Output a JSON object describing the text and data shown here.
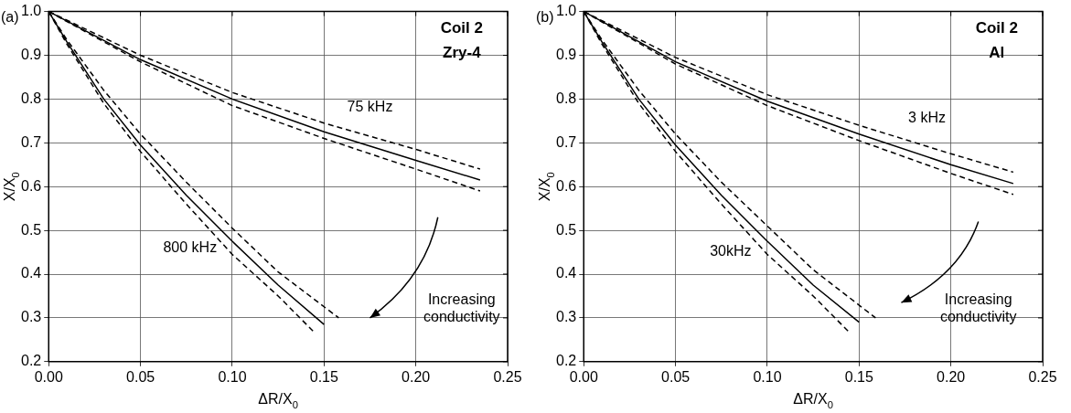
{
  "chart_data": [
    {
      "type": "line",
      "title": "(a)",
      "xlabel": "ΔR/X$_{0}$",
      "ylabel": "X/X$_{0}$",
      "xlim": [
        0,
        0.25
      ],
      "ylim": [
        0.2,
        1.0
      ],
      "xticks": [
        {
          "value": 0,
          "label": "0.00"
        },
        {
          "value": 0.05,
          "label": "0.05"
        },
        {
          "value": 0.1,
          "label": "0.10"
        },
        {
          "value": 0.15,
          "label": "0.15"
        },
        {
          "value": 0.2,
          "label": "0.20"
        },
        {
          "value": 0.25,
          "label": "0.25"
        }
      ],
      "yticks": [
        0.2,
        0.3,
        0.4,
        0.5,
        0.6,
        0.7,
        0.8,
        0.9,
        {
          "value": 1,
          "label": "1.0"
        }
      ],
      "grid": true,
      "legend": false,
      "marker": "none",
      "annotations": [
        "Coil 2",
        "Zry-4",
        "75 kHz",
        "800 kHz",
        "Increasing conductivity"
      ],
      "series": [
        {
          "color": "#000000",
          "line_style": "solid",
          "x": [
            0,
            0.05,
            0.1,
            0.15,
            0.2,
            0.235
          ],
          "values": [
            1,
            0.89,
            0.8,
            0.725,
            0.66,
            0.615
          ]
        },
        {
          "color": "#000000",
          "line_style": "dashed",
          "x": [
            0,
            0.05,
            0.1,
            0.15,
            0.2,
            0.235
          ],
          "values": [
            1,
            0.9,
            0.815,
            0.745,
            0.685,
            0.64
          ]
        },
        {
          "color": "#000000",
          "line_style": "dashed",
          "x": [
            0,
            0.05,
            0.1,
            0.15,
            0.2,
            0.235
          ],
          "values": [
            1,
            0.885,
            0.785,
            0.71,
            0.64,
            0.59
          ]
        },
        {
          "color": "#000000",
          "line_style": "solid",
          "x": [
            0,
            0.01,
            0.03,
            0.05,
            0.075,
            0.1,
            0.125,
            0.15
          ],
          "values": [
            1,
            0.93,
            0.8,
            0.695,
            0.58,
            0.475,
            0.375,
            0.285
          ]
        },
        {
          "color": "#000000",
          "line_style": "dashed",
          "x": [
            0,
            0.01,
            0.03,
            0.05,
            0.075,
            0.1,
            0.125,
            0.158
          ],
          "values": [
            1,
            0.935,
            0.82,
            0.72,
            0.61,
            0.505,
            0.405,
            0.3
          ]
        },
        {
          "color": "#000000",
          "line_style": "dashed",
          "x": [
            0,
            0.01,
            0.03,
            0.05,
            0.075,
            0.1,
            0.125,
            0.144
          ],
          "values": [
            1,
            0.925,
            0.79,
            0.68,
            0.56,
            0.445,
            0.35,
            0.27
          ]
        }
      ]
    },
    {
      "type": "line",
      "title": "(b)",
      "xlabel": "ΔR/X$_{0}$",
      "ylabel": "X/X$_{0}$",
      "xlim": [
        0,
        0.25
      ],
      "ylim": [
        0.2,
        1.0
      ],
      "xticks": [
        {
          "value": 0,
          "label": "0.00"
        },
        {
          "value": 0.05,
          "label": "0.05"
        },
        {
          "value": 0.1,
          "label": "0.10"
        },
        {
          "value": 0.15,
          "label": "0.15"
        },
        {
          "value": 0.2,
          "label": "0.20"
        },
        {
          "value": 0.25,
          "label": "0.25"
        }
      ],
      "yticks": [
        0.2,
        0.3,
        0.4,
        0.5,
        0.6,
        0.7,
        0.8,
        0.9,
        {
          "value": 1,
          "label": "1.0"
        }
      ],
      "grid": true,
      "legend": false,
      "marker": "none",
      "annotations": [
        "Coil 2",
        "Al",
        "3 kHz",
        "30kHz",
        "Increasing conductivity"
      ],
      "series": [
        {
          "color": "#000000",
          "line_style": "solid",
          "x": [
            0,
            0.05,
            0.1,
            0.15,
            0.2,
            0.234
          ],
          "values": [
            1,
            0.885,
            0.795,
            0.72,
            0.65,
            0.607
          ]
        },
        {
          "color": "#000000",
          "line_style": "dashed",
          "x": [
            0,
            0.05,
            0.1,
            0.15,
            0.2,
            0.234
          ],
          "values": [
            1,
            0.895,
            0.81,
            0.74,
            0.675,
            0.633
          ]
        },
        {
          "color": "#000000",
          "line_style": "dashed",
          "x": [
            0,
            0.05,
            0.1,
            0.15,
            0.2,
            0.234
          ],
          "values": [
            1,
            0.88,
            0.785,
            0.705,
            0.63,
            0.582
          ]
        },
        {
          "color": "#000000",
          "line_style": "solid",
          "x": [
            0,
            0.01,
            0.03,
            0.05,
            0.075,
            0.1,
            0.125,
            0.15
          ],
          "values": [
            1,
            0.93,
            0.8,
            0.695,
            0.58,
            0.475,
            0.375,
            0.29
          ]
        },
        {
          "color": "#000000",
          "line_style": "dashed",
          "x": [
            0,
            0.01,
            0.03,
            0.05,
            0.075,
            0.1,
            0.125,
            0.159
          ],
          "values": [
            1,
            0.935,
            0.82,
            0.72,
            0.61,
            0.51,
            0.41,
            0.3
          ]
        },
        {
          "color": "#000000",
          "line_style": "dashed",
          "x": [
            0,
            0.01,
            0.03,
            0.05,
            0.075,
            0.1,
            0.125,
            0.144
          ],
          "values": [
            1,
            0.925,
            0.79,
            0.68,
            0.56,
            0.445,
            0.35,
            0.27
          ]
        }
      ]
    }
  ]
}
